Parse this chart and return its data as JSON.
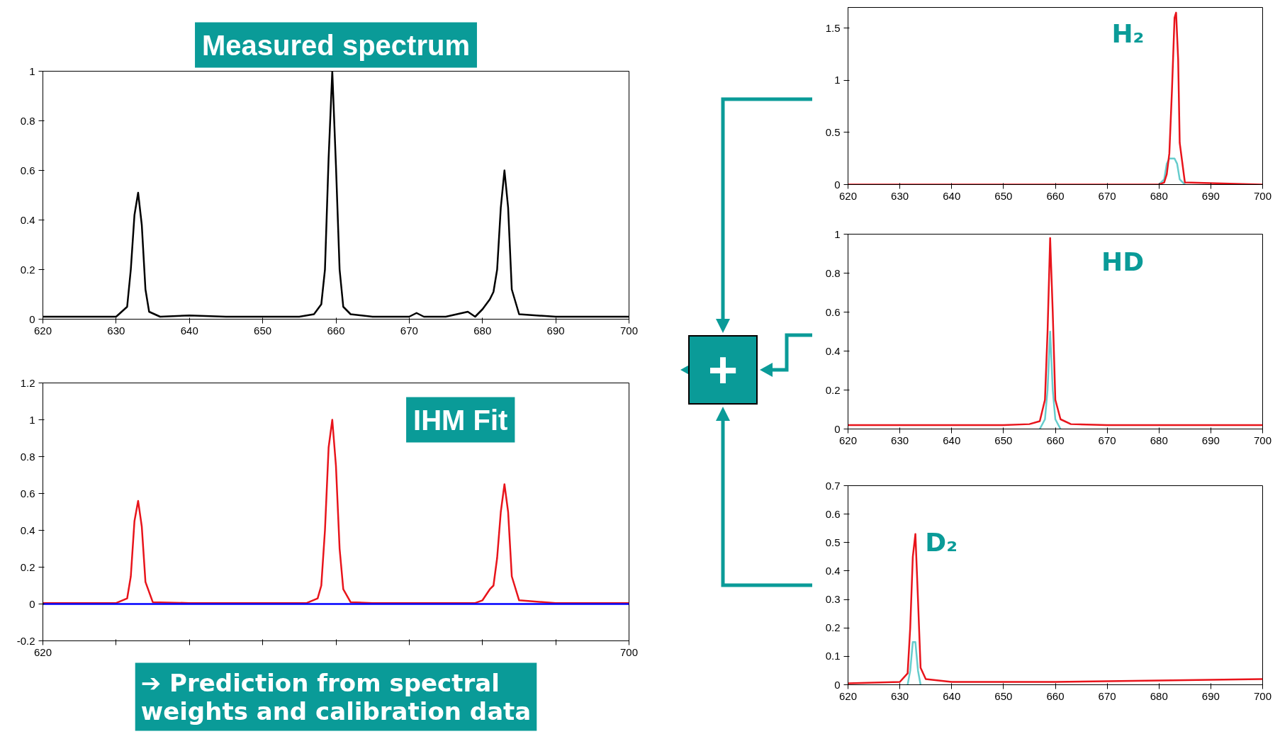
{
  "chart_data": [
    {
      "type": "line",
      "title": "Measured spectrum",
      "xlim": [
        620,
        700
      ],
      "ylim": [
        0,
        1
      ],
      "xticks": [
        620,
        630,
        640,
        650,
        660,
        670,
        680,
        690,
        700
      ],
      "yticks": [
        0,
        0.2,
        0.4,
        0.6,
        0.8,
        1
      ],
      "grid": false,
      "series": [
        {
          "color": "#000000",
          "x": [
            620,
            625,
            630,
            631.5,
            632,
            632.5,
            633,
            633.5,
            634,
            634.5,
            636,
            640,
            645,
            650,
            655,
            657,
            658,
            658.5,
            659,
            659.5,
            660,
            660.5,
            661,
            662,
            665,
            670,
            671,
            672,
            675,
            678,
            679,
            680,
            681,
            681.5,
            682,
            682.5,
            683,
            683.5,
            684,
            685,
            690,
            700
          ],
          "values": [
            0.01,
            0.01,
            0.01,
            0.05,
            0.2,
            0.42,
            0.51,
            0.38,
            0.12,
            0.03,
            0.01,
            0.015,
            0.01,
            0.01,
            0.01,
            0.02,
            0.06,
            0.2,
            0.65,
            1.0,
            0.62,
            0.2,
            0.05,
            0.02,
            0.01,
            0.01,
            0.025,
            0.01,
            0.01,
            0.03,
            0.01,
            0.04,
            0.08,
            0.11,
            0.2,
            0.45,
            0.6,
            0.45,
            0.12,
            0.02,
            0.01,
            0.01
          ]
        }
      ]
    },
    {
      "type": "line",
      "title": "IHM Fit",
      "annotations": [
        "➔ Prediction from spectral\nweights and calibration data"
      ],
      "xlim": [
        620,
        700
      ],
      "ylim": [
        -0.2,
        1.2
      ],
      "xticks": [
        620,
        {
          "value": 630,
          "label": null
        },
        {
          "value": 640,
          "label": null
        },
        {
          "value": 650,
          "label": null
        },
        {
          "value": 660,
          "label": null
        },
        {
          "value": 670,
          "label": null
        },
        {
          "value": 680,
          "label": null
        },
        {
          "value": 690,
          "label": null
        },
        700
      ],
      "yticks": [
        -0.2,
        0,
        0.2,
        0.4,
        0.6,
        0.8,
        1,
        1.2
      ],
      "grid": false,
      "series": [
        {
          "color": "#e8141b",
          "x": [
            620,
            630,
            631.5,
            632,
            632.5,
            633,
            633.5,
            634,
            635,
            640,
            650,
            656,
            657.5,
            658,
            658.5,
            659,
            659.5,
            660,
            660.5,
            661,
            662,
            665,
            670,
            679,
            680,
            681,
            681.5,
            682,
            682.5,
            683,
            683.5,
            684,
            685,
            690,
            700
          ],
          "values": [
            0.005,
            0.005,
            0.03,
            0.15,
            0.45,
            0.56,
            0.42,
            0.12,
            0.01,
            0.005,
            0.005,
            0.005,
            0.03,
            0.1,
            0.4,
            0.85,
            1.0,
            0.75,
            0.3,
            0.08,
            0.01,
            0.005,
            0.005,
            0.005,
            0.02,
            0.08,
            0.1,
            0.25,
            0.5,
            0.65,
            0.5,
            0.15,
            0.02,
            0.005,
            0.005
          ]
        },
        {
          "color": "#0000ff",
          "x": [
            620,
            700
          ],
          "values": [
            0,
            0
          ]
        }
      ]
    },
    {
      "type": "other",
      "annotations": [
        "+"
      ]
    },
    {
      "type": "line",
      "title": "H₂",
      "xlim": [
        620,
        700
      ],
      "ylim": [
        0,
        1.7
      ],
      "xticks": [
        620,
        630,
        640,
        650,
        660,
        670,
        680,
        690,
        700
      ],
      "yticks": [
        0,
        0.5,
        1,
        1.5
      ],
      "grid": false,
      "series": [
        {
          "color": "#66cccc",
          "x": [
            680,
            681,
            681.5,
            682,
            682.5,
            683,
            683.5,
            684,
            685
          ],
          "values": [
            0,
            0.05,
            0.2,
            0.25,
            0.25,
            0.25,
            0.2,
            0.05,
            0
          ]
        },
        {
          "color": "#e8141b",
          "x": [
            620,
            680,
            681,
            681.5,
            682,
            682.5,
            683,
            683.3,
            683.7,
            684,
            685,
            700
          ],
          "values": [
            0,
            0,
            0.02,
            0.1,
            0.3,
            0.9,
            1.6,
            1.65,
            1.2,
            0.4,
            0.02,
            0
          ]
        }
      ]
    },
    {
      "type": "line",
      "title": "HD",
      "xlim": [
        620,
        700
      ],
      "ylim": [
        0,
        1
      ],
      "xticks": [
        620,
        630,
        640,
        650,
        660,
        670,
        680,
        690,
        700
      ],
      "yticks": [
        0,
        0.2,
        0.4,
        0.6,
        0.8,
        1
      ],
      "grid": false,
      "series": [
        {
          "color": "#66cccc",
          "x": [
            657,
            658,
            658.5,
            659,
            659.5,
            660,
            661
          ],
          "values": [
            0,
            0.05,
            0.2,
            0.5,
            0.2,
            0.05,
            0
          ]
        },
        {
          "color": "#e8141b",
          "x": [
            620,
            650,
            655,
            657,
            658,
            658.5,
            659,
            659.5,
            660,
            661,
            663,
            670,
            700
          ],
          "values": [
            0.02,
            0.02,
            0.025,
            0.04,
            0.15,
            0.5,
            0.98,
            0.6,
            0.15,
            0.05,
            0.025,
            0.02,
            0.02
          ]
        }
      ]
    },
    {
      "type": "line",
      "title": "D₂",
      "xlim": [
        620,
        700
      ],
      "ylim": [
        0,
        0.7
      ],
      "xticks": [
        620,
        630,
        640,
        650,
        660,
        670,
        680,
        690,
        700
      ],
      "yticks": [
        0,
        0.1,
        0.2,
        0.3,
        0.4,
        0.5,
        0.6,
        0.7
      ],
      "grid": false,
      "series": [
        {
          "color": "#66cccc",
          "x": [
            631.5,
            632,
            632.5,
            633,
            633.5,
            634
          ],
          "values": [
            0,
            0.05,
            0.15,
            0.15,
            0.05,
            0
          ]
        },
        {
          "color": "#e8141b",
          "x": [
            620,
            630,
            631.5,
            632,
            632.5,
            633,
            633.5,
            634,
            635,
            640,
            660,
            680,
            700
          ],
          "values": [
            0.005,
            0.01,
            0.04,
            0.2,
            0.45,
            0.53,
            0.3,
            0.06,
            0.02,
            0.01,
            0.01,
            0.015,
            0.02
          ]
        }
      ]
    }
  ]
}
